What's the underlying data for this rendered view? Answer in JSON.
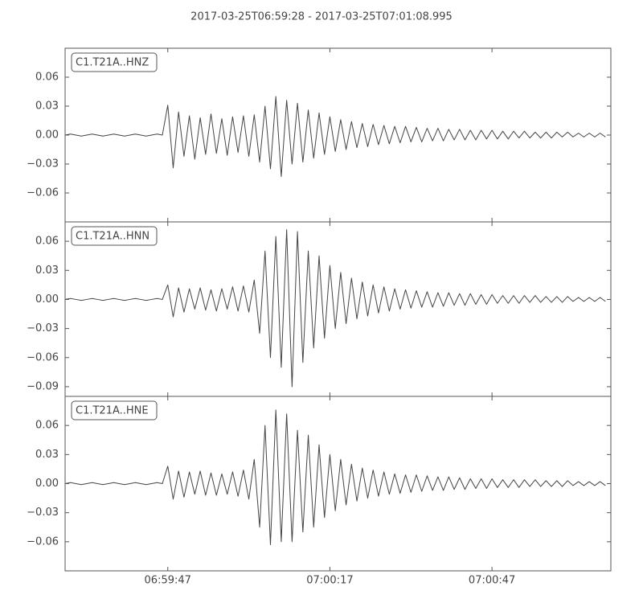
{
  "title": "2017-03-25T06:59:28  -  2017-03-25T07:01:08.995",
  "chart_data": [
    {
      "type": "line",
      "x": [
        0,
        1,
        2,
        3,
        4,
        5,
        6,
        7,
        8,
        9,
        10,
        11,
        12,
        13,
        14,
        15,
        16,
        17,
        18,
        19,
        20,
        21,
        22,
        23,
        24,
        25,
        26,
        27,
        28,
        29,
        30,
        31,
        32,
        33,
        34,
        35,
        36,
        37,
        38,
        39,
        40,
        41,
        42,
        43,
        44,
        45,
        46,
        47,
        48,
        49,
        50,
        51,
        52,
        53,
        54,
        55,
        56,
        57,
        58,
        59,
        60,
        61,
        62,
        63,
        64,
        65,
        66,
        67,
        68,
        69,
        70,
        71,
        72,
        73,
        74,
        75,
        76,
        77,
        78,
        79,
        80,
        81,
        82,
        83,
        84,
        85,
        86,
        87,
        88,
        89,
        90,
        91,
        92,
        93,
        94,
        95,
        96,
        97,
        98,
        99,
        100
      ],
      "series": [
        {
          "name": "C1.T21A..HNZ",
          "color": "#444444",
          "values": [
            0,
            0.001,
            0,
            -0.001,
            0,
            0.001,
            0,
            -0.001,
            0,
            0.001,
            0,
            -0.001,
            0,
            0.001,
            0,
            -0.001,
            0,
            0.001,
            0,
            0.031,
            -0.034,
            0.024,
            -0.022,
            0.02,
            -0.025,
            0.018,
            -0.02,
            0.022,
            -0.019,
            0.017,
            -0.021,
            0.019,
            -0.018,
            0.02,
            -0.022,
            0.021,
            -0.028,
            0.03,
            -0.035,
            0.04,
            -0.043,
            0.036,
            -0.03,
            0.033,
            -0.028,
            0.026,
            -0.024,
            0.023,
            -0.02,
            0.019,
            -0.017,
            0.016,
            -0.015,
            0.014,
            -0.013,
            0.012,
            -0.012,
            0.011,
            -0.01,
            0.01,
            -0.009,
            0.009,
            -0.008,
            0.009,
            -0.007,
            0.008,
            -0.007,
            0.007,
            -0.006,
            0.007,
            -0.006,
            0.006,
            -0.005,
            0.006,
            -0.005,
            0.005,
            -0.005,
            0.005,
            -0.004,
            0.005,
            -0.004,
            0.004,
            -0.004,
            0.004,
            -0.003,
            0.004,
            -0.003,
            0.003,
            -0.003,
            0.003,
            -0.003,
            0.003,
            -0.002,
            0.003,
            -0.002,
            0.002,
            -0.002,
            0.002,
            -0.002,
            0.002,
            -0.002
          ]
        }
      ],
      "xlim": [
        0,
        100.995
      ],
      "ylim": [
        -0.09,
        0.09
      ],
      "yticks": [
        {
          "value": -0.06,
          "label": "−0.06"
        },
        {
          "value": -0.03,
          "label": "−0.03"
        },
        {
          "value": 0,
          "label": "0.00"
        },
        {
          "value": 0.03,
          "label": "0.03"
        },
        {
          "value": 0.06,
          "label": "0.06"
        }
      ]
    },
    {
      "type": "line",
      "x": [
        0,
        1,
        2,
        3,
        4,
        5,
        6,
        7,
        8,
        9,
        10,
        11,
        12,
        13,
        14,
        15,
        16,
        17,
        18,
        19,
        20,
        21,
        22,
        23,
        24,
        25,
        26,
        27,
        28,
        29,
        30,
        31,
        32,
        33,
        34,
        35,
        36,
        37,
        38,
        39,
        40,
        41,
        42,
        43,
        44,
        45,
        46,
        47,
        48,
        49,
        50,
        51,
        52,
        53,
        54,
        55,
        56,
        57,
        58,
        59,
        60,
        61,
        62,
        63,
        64,
        65,
        66,
        67,
        68,
        69,
        70,
        71,
        72,
        73,
        74,
        75,
        76,
        77,
        78,
        79,
        80,
        81,
        82,
        83,
        84,
        85,
        86,
        87,
        88,
        89,
        90,
        91,
        92,
        93,
        94,
        95,
        96,
        97,
        98,
        99,
        100
      ],
      "series": [
        {
          "name": "C1.T21A..HNN",
          "color": "#444444",
          "values": [
            0,
            0.001,
            0,
            -0.001,
            0,
            0.001,
            0,
            -0.001,
            0,
            0.001,
            0,
            -0.001,
            0,
            0.001,
            0,
            -0.001,
            0,
            0.001,
            0,
            0.015,
            -0.018,
            0.012,
            -0.013,
            0.011,
            -0.01,
            0.012,
            -0.011,
            0.01,
            -0.012,
            0.011,
            -0.01,
            0.013,
            -0.012,
            0.014,
            -0.013,
            0.02,
            -0.035,
            0.05,
            -0.06,
            0.065,
            -0.07,
            0.072,
            -0.09,
            0.07,
            -0.065,
            0.05,
            -0.05,
            0.045,
            -0.04,
            0.035,
            -0.03,
            0.028,
            -0.025,
            0.022,
            -0.02,
            0.018,
            -0.017,
            0.015,
            -0.014,
            0.013,
            -0.012,
            0.011,
            -0.01,
            0.01,
            -0.009,
            0.009,
            -0.008,
            0.008,
            -0.008,
            0.007,
            -0.007,
            0.007,
            -0.006,
            0.006,
            -0.006,
            0.006,
            -0.005,
            0.005,
            -0.005,
            0.005,
            -0.004,
            0.004,
            -0.004,
            0.004,
            -0.004,
            0.004,
            -0.003,
            0.004,
            -0.003,
            0.003,
            -0.003,
            0.003,
            -0.003,
            0.003,
            -0.002,
            0.002,
            -0.002,
            0.002,
            -0.002,
            0.002,
            -0.002
          ]
        }
      ],
      "xlim": [
        0,
        100.995
      ],
      "ylim": [
        -0.1,
        0.08
      ],
      "yticks": [
        {
          "value": -0.09,
          "label": "−0.09"
        },
        {
          "value": -0.06,
          "label": "−0.06"
        },
        {
          "value": -0.03,
          "label": "−0.03"
        },
        {
          "value": 0,
          "label": "0.00"
        },
        {
          "value": 0.03,
          "label": "0.03"
        },
        {
          "value": 0.06,
          "label": "0.06"
        }
      ]
    },
    {
      "type": "line",
      "x": [
        0,
        1,
        2,
        3,
        4,
        5,
        6,
        7,
        8,
        9,
        10,
        11,
        12,
        13,
        14,
        15,
        16,
        17,
        18,
        19,
        20,
        21,
        22,
        23,
        24,
        25,
        26,
        27,
        28,
        29,
        30,
        31,
        32,
        33,
        34,
        35,
        36,
        37,
        38,
        39,
        40,
        41,
        42,
        43,
        44,
        45,
        46,
        47,
        48,
        49,
        50,
        51,
        52,
        53,
        54,
        55,
        56,
        57,
        58,
        59,
        60,
        61,
        62,
        63,
        64,
        65,
        66,
        67,
        68,
        69,
        70,
        71,
        72,
        73,
        74,
        75,
        76,
        77,
        78,
        79,
        80,
        81,
        82,
        83,
        84,
        85,
        86,
        87,
        88,
        89,
        90,
        91,
        92,
        93,
        94,
        95,
        96,
        97,
        98,
        99,
        100
      ],
      "series": [
        {
          "name": "C1.T21A..HNE",
          "color": "#444444",
          "values": [
            0,
            0.001,
            0,
            -0.001,
            0,
            0.001,
            0,
            -0.001,
            0,
            0.001,
            0,
            -0.001,
            0,
            0.001,
            0,
            -0.001,
            0,
            0.001,
            0,
            0.018,
            -0.016,
            0.013,
            -0.014,
            0.012,
            -0.011,
            0.013,
            -0.012,
            0.011,
            -0.012,
            0.01,
            -0.011,
            0.012,
            -0.013,
            0.014,
            -0.016,
            0.025,
            -0.045,
            0.06,
            -0.063,
            0.076,
            -0.06,
            0.072,
            -0.06,
            0.055,
            -0.05,
            0.05,
            -0.045,
            0.04,
            -0.035,
            0.03,
            -0.028,
            0.025,
            -0.022,
            0.02,
            -0.018,
            0.016,
            -0.015,
            0.014,
            -0.013,
            0.012,
            -0.011,
            0.01,
            -0.01,
            0.009,
            -0.009,
            0.009,
            -0.008,
            0.008,
            -0.007,
            0.007,
            -0.007,
            0.007,
            -0.006,
            0.006,
            -0.006,
            0.005,
            -0.005,
            0.005,
            -0.005,
            0.005,
            -0.004,
            0.004,
            -0.004,
            0.004,
            -0.004,
            0.004,
            -0.003,
            0.004,
            -0.003,
            0.003,
            -0.003,
            0.003,
            -0.003,
            0.003,
            -0.002,
            0.002,
            -0.002,
            0.002,
            -0.002,
            0.002,
            -0.002
          ]
        }
      ],
      "xlim": [
        0,
        100.995
      ],
      "ylim": [
        -0.09,
        0.09
      ],
      "yticks": [
        {
          "value": -0.06,
          "label": "−0.06"
        },
        {
          "value": -0.03,
          "label": "−0.03"
        },
        {
          "value": 0,
          "label": "0.00"
        },
        {
          "value": 0.03,
          "label": "0.03"
        },
        {
          "value": 0.06,
          "label": "0.06"
        }
      ],
      "xticks": [
        {
          "value": 19,
          "label": "06:59:47"
        },
        {
          "value": 49,
          "label": "07:00:17"
        },
        {
          "value": 79,
          "label": "07:00:47"
        }
      ]
    }
  ]
}
